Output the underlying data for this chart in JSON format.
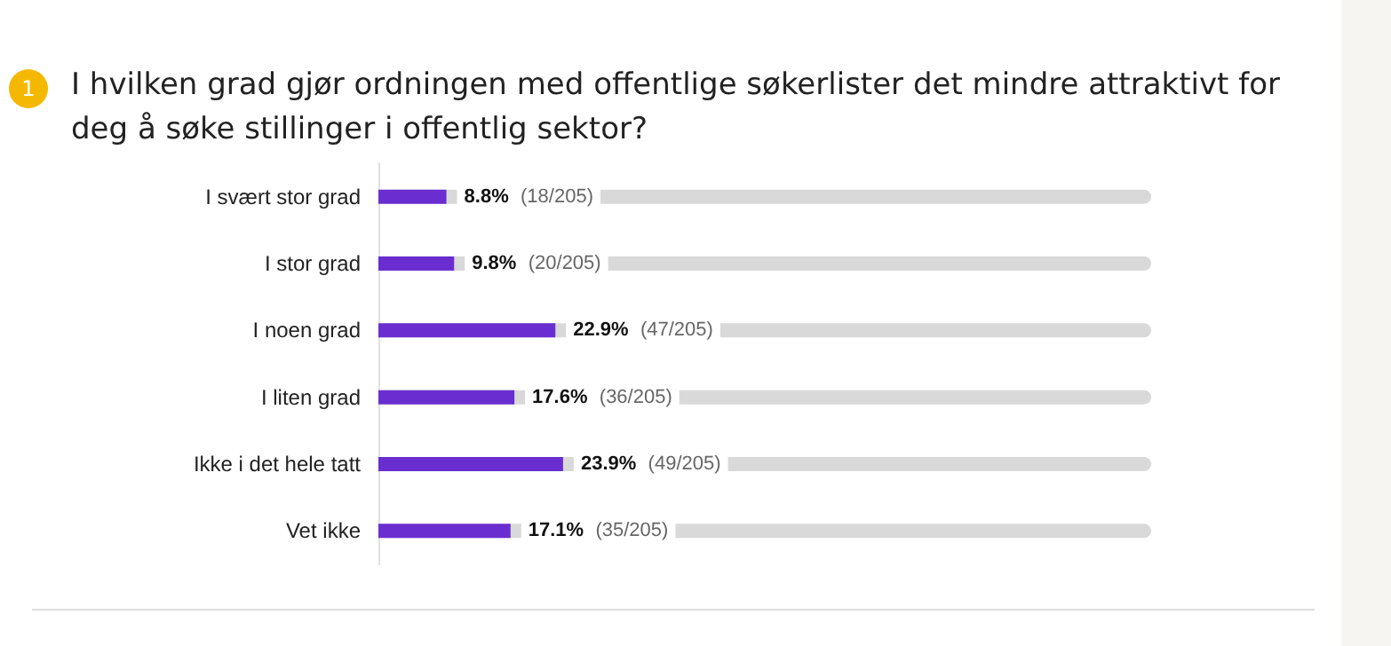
{
  "chart_data": {
    "type": "bar",
    "orientation": "horizontal",
    "title": "I hvilken grad gjør ordningen med offentlige søkerlister det mindre attraktivt for deg å søke stillinger i offentlig sektor?",
    "annotations": [
      "1"
    ],
    "categories": [
      "I svært stor grad",
      "I stor grad",
      "I noen grad",
      "I liten grad",
      "Ikke i det hele tatt",
      "Vet ikke"
    ],
    "values": [
      8.8,
      9.8,
      22.9,
      17.6,
      23.9,
      17.1
    ],
    "value_labels": [
      "8.8% (18/205)",
      "9.8% (20/205)",
      "22.9% (47/205)",
      "17.6% (36/205)",
      "23.9% (49/205)",
      "17.1% (35/205)"
    ],
    "color": "#6a2ed0",
    "xlim": [
      0,
      100
    ],
    "tick_labels": "y"
  }
}
